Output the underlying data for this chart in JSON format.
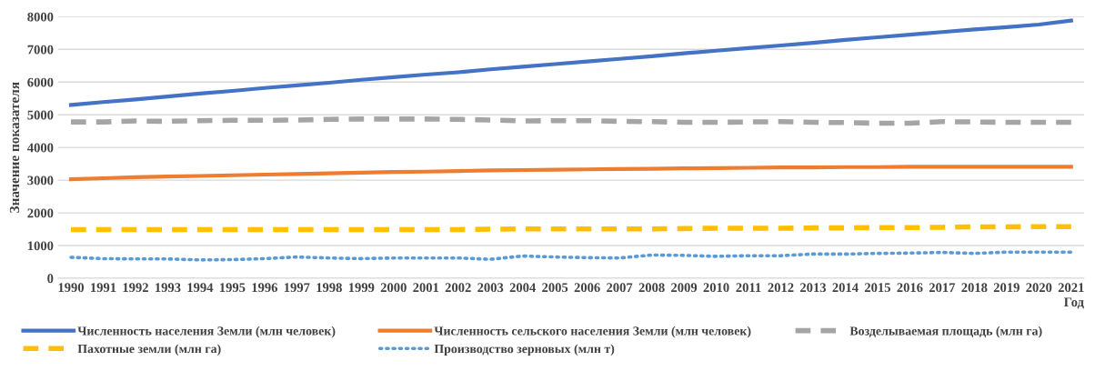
{
  "chart_data": {
    "type": "line",
    "xlabel": "Год",
    "ylabel": "Значение показателя",
    "categories": [
      "1990",
      "1991",
      "1992",
      "1993",
      "1994",
      "1995",
      "1996",
      "1997",
      "1998",
      "1999",
      "2000",
      "2001",
      "2002",
      "2003",
      "2004",
      "2005",
      "2006",
      "2007",
      "2008",
      "2009",
      "2010",
      "2011",
      "2012",
      "2013",
      "2014",
      "2015",
      "2016",
      "2017",
      "2018",
      "2019",
      "2020",
      "2021"
    ],
    "ylim": [
      0,
      8000
    ],
    "yticks": [
      0,
      1000,
      2000,
      3000,
      4000,
      5000,
      6000,
      7000,
      8000
    ],
    "grid": "y",
    "legend": "bottom",
    "series": [
      {
        "name": "Численность населения Земли (млн человек)",
        "color": "#4472c4",
        "line_style": "solid",
        "values": [
          5300,
          5390,
          5470,
          5560,
          5650,
          5730,
          5820,
          5900,
          5980,
          6070,
          6150,
          6230,
          6300,
          6390,
          6470,
          6550,
          6630,
          6710,
          6790,
          6880,
          6960,
          7040,
          7120,
          7200,
          7290,
          7370,
          7450,
          7530,
          7610,
          7680,
          7760,
          7880
        ]
      },
      {
        "name": "Численность сельского населения Земли (млн человек)",
        "color": "#ed7d31",
        "line_style": "solid",
        "values": [
          3030,
          3060,
          3090,
          3110,
          3130,
          3150,
          3170,
          3190,
          3210,
          3230,
          3250,
          3260,
          3280,
          3300,
          3310,
          3320,
          3330,
          3340,
          3350,
          3360,
          3370,
          3380,
          3390,
          3390,
          3400,
          3400,
          3410,
          3410,
          3410,
          3410,
          3410,
          3410
        ]
      },
      {
        "name": "Возделываемая площадь (млн га)",
        "color": "#a5a5a5",
        "line_style": "dashed",
        "values": [
          4780,
          4780,
          4810,
          4800,
          4820,
          4830,
          4830,
          4840,
          4860,
          4870,
          4870,
          4870,
          4860,
          4840,
          4810,
          4820,
          4820,
          4800,
          4790,
          4770,
          4770,
          4780,
          4790,
          4770,
          4760,
          4740,
          4740,
          4790,
          4780,
          4770,
          4770,
          4770
        ]
      },
      {
        "name": "Пахотные земли (млн га)",
        "color": "#ffc000",
        "line_style": "dashed",
        "values": [
          1490,
          1490,
          1490,
          1490,
          1490,
          1490,
          1490,
          1490,
          1490,
          1490,
          1490,
          1490,
          1490,
          1500,
          1510,
          1510,
          1510,
          1510,
          1510,
          1520,
          1530,
          1530,
          1530,
          1540,
          1540,
          1550,
          1550,
          1560,
          1570,
          1570,
          1580,
          1580
        ]
      },
      {
        "name": "Производство зерновых (млн т)",
        "color": "#5b9bd5",
        "line_style": "dotted",
        "values": [
          640,
          600,
          590,
          590,
          560,
          570,
          600,
          650,
          620,
          600,
          620,
          620,
          620,
          580,
          680,
          650,
          630,
          620,
          710,
          700,
          670,
          690,
          690,
          740,
          740,
          760,
          770,
          790,
          760,
          800,
          800,
          800
        ]
      }
    ]
  }
}
